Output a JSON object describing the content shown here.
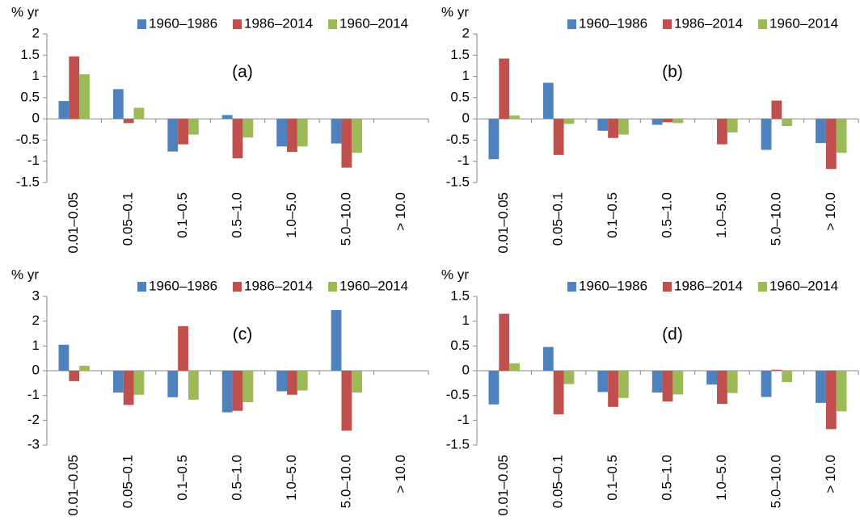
{
  "chart_data": [
    {
      "type": "bar",
      "annotation": "(a)",
      "y_label": "% yr",
      "categories": [
        "0.01–0.05",
        "0.05–0.1",
        "0.1–0.5",
        "0.5–1.0",
        "1.0–5.0",
        "5.0–10.0",
        "> 10.0"
      ],
      "series": [
        {
          "name": "1960–1986",
          "color": "#4f81bd",
          "values": [
            0.42,
            0.7,
            -0.77,
            0.09,
            -0.65,
            -0.58,
            null
          ]
        },
        {
          "name": "1986–2014",
          "color": "#c0504d",
          "values": [
            1.47,
            -0.1,
            -0.6,
            -0.93,
            -0.78,
            -1.15,
            null
          ]
        },
        {
          "name": "1960–2014",
          "color": "#9bbb59",
          "values": [
            1.05,
            0.26,
            -0.37,
            -0.44,
            -0.65,
            -0.8,
            null
          ]
        }
      ],
      "ylim": [
        -1.5,
        2
      ],
      "yticks": [
        -1.5,
        -1,
        -0.5,
        0,
        0.5,
        1,
        1.5,
        2
      ]
    },
    {
      "type": "bar",
      "annotation": "(b)",
      "y_label": "% yr",
      "categories": [
        "0.01–0.05",
        "0.05–0.1",
        "0.1–0.5",
        "0.5–1.0",
        "1.0–5.0",
        "5.0–10.0",
        "> 10.0"
      ],
      "series": [
        {
          "name": "1960–1986",
          "color": "#4f81bd",
          "values": [
            -0.95,
            0.85,
            -0.28,
            -0.14,
            0,
            -0.73,
            -0.57
          ]
        },
        {
          "name": "1986–2014",
          "color": "#c0504d",
          "values": [
            1.42,
            -0.85,
            -0.45,
            -0.08,
            -0.6,
            0.43,
            -1.18
          ]
        },
        {
          "name": "1960–2014",
          "color": "#9bbb59",
          "values": [
            0.08,
            -0.12,
            -0.37,
            -0.1,
            -0.32,
            -0.17,
            -0.8
          ]
        }
      ],
      "ylim": [
        -1.5,
        2
      ],
      "yticks": [
        -1.5,
        -1,
        -0.5,
        0,
        0.5,
        1,
        1.5,
        2
      ]
    },
    {
      "type": "bar",
      "annotation": "(c)",
      "y_label": "% yr",
      "categories": [
        "0.01–0.05",
        "0.05–0.1",
        "0.1–0.5",
        "0.5–1.0",
        "1.0–5.0",
        "5.0–10.0",
        "> 10.0"
      ],
      "series": [
        {
          "name": "1960–1986",
          "color": "#4f81bd",
          "values": [
            1.05,
            -0.88,
            -1.07,
            -1.68,
            -0.83,
            2.45,
            null
          ]
        },
        {
          "name": "1986–2014",
          "color": "#c0504d",
          "values": [
            -0.42,
            -1.38,
            1.8,
            -1.62,
            -0.97,
            -2.42,
            null
          ]
        },
        {
          "name": "1960–2014",
          "color": "#9bbb59",
          "values": [
            0.2,
            -0.97,
            -1.17,
            -1.27,
            -0.8,
            -0.88,
            null
          ]
        }
      ],
      "ylim": [
        -3,
        3
      ],
      "yticks": [
        -3,
        -2,
        -1,
        0,
        1,
        2,
        3
      ]
    },
    {
      "type": "bar",
      "annotation": "(d)",
      "y_label": "% yr",
      "categories": [
        "0.01–0.05",
        "0.05–0.1",
        "0.1–0.5",
        "0.5–1.0",
        "1.0–5.0",
        "5.0–10.0",
        "> 10.0"
      ],
      "series": [
        {
          "name": "1960–1986",
          "color": "#4f81bd",
          "values": [
            -0.68,
            0.48,
            -0.43,
            -0.44,
            -0.28,
            -0.53,
            -0.65
          ]
        },
        {
          "name": "1986–2014",
          "color": "#c0504d",
          "values": [
            1.15,
            -0.88,
            -0.73,
            -0.62,
            -0.67,
            0.02,
            -1.18
          ]
        },
        {
          "name": "1960–2014",
          "color": "#9bbb59",
          "values": [
            0.15,
            -0.27,
            -0.55,
            -0.48,
            -0.45,
            -0.23,
            -0.82
          ]
        }
      ],
      "ylim": [
        -1.5,
        1.5
      ],
      "yticks": [
        -1.5,
        -1,
        -0.5,
        0,
        0.5,
        1,
        1.5
      ]
    }
  ]
}
